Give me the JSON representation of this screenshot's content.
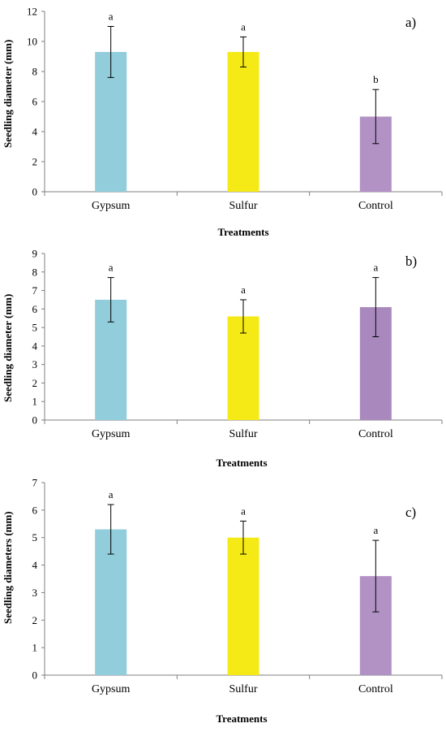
{
  "chart_data": [
    {
      "type": "bar",
      "panel_label": "a)",
      "categories": [
        "Gypsum",
        "Sulfur",
        "Control"
      ],
      "values": [
        9.3,
        9.3,
        5.0
      ],
      "error": [
        1.7,
        1.0,
        1.8
      ],
      "letters": [
        "a",
        "a",
        "b"
      ],
      "colors": [
        "#92cddc",
        "#f5ea15",
        "#b292c5"
      ],
      "xlabel": "Treatments",
      "ylabel": "Seedling  diameter  (mm)",
      "ylim": [
        0,
        12
      ],
      "yticks": [
        0,
        2,
        4,
        6,
        8,
        10,
        12
      ],
      "grid": false
    },
    {
      "type": "bar",
      "panel_label": "b)",
      "categories": [
        "Gypsum",
        "Sulfur",
        "Control"
      ],
      "values": [
        6.5,
        5.6,
        6.1
      ],
      "error": [
        1.2,
        0.9,
        1.6
      ],
      "letters": [
        "a",
        "a",
        "a"
      ],
      "colors": [
        "#92cddc",
        "#f5ea15",
        "#a989bd"
      ],
      "xlabel": "Treatments",
      "ylabel": "Seedling diameter (mm)",
      "ylim": [
        0,
        9
      ],
      "yticks": [
        0,
        1,
        2,
        3,
        4,
        5,
        6,
        7,
        8,
        9
      ],
      "grid": false
    },
    {
      "type": "bar",
      "panel_label": "c)",
      "categories": [
        "Gypsum",
        "Sulfur",
        "Control"
      ],
      "values": [
        5.3,
        5.0,
        3.6
      ],
      "error": [
        0.9,
        0.6,
        1.3
      ],
      "letters": [
        "a",
        "a",
        "a"
      ],
      "colors": [
        "#92cddc",
        "#f5ea15",
        "#b292c5"
      ],
      "xlabel": "Treatments",
      "ylabel": "Seedling diameters (mm)",
      "ylim": [
        0,
        7
      ],
      "yticks": [
        0,
        1,
        2,
        3,
        4,
        5,
        6,
        7
      ],
      "grid": false
    }
  ]
}
